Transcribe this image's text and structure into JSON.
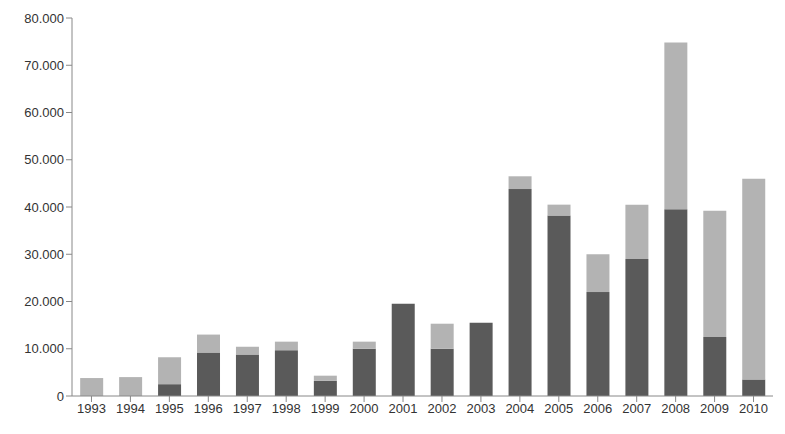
{
  "chart_data": {
    "type": "bar",
    "stacked": true,
    "grid": false,
    "categories": [
      "1993",
      "1994",
      "1995",
      "1996",
      "1997",
      "1998",
      "1999",
      "2000",
      "2001",
      "2002",
      "2003",
      "2004",
      "2005",
      "2006",
      "2007",
      "2008",
      "2009",
      "2010"
    ],
    "series": [
      {
        "color": "#5a5a5a",
        "values": [
          0,
          0,
          2500,
          9200,
          8800,
          9700,
          3200,
          10000,
          19500,
          10000,
          15500,
          43800,
          38200,
          22000,
          29000,
          39500,
          12500,
          3500
        ]
      },
      {
        "color": "#b3b3b3",
        "values": [
          3800,
          4000,
          5700,
          3800,
          1600,
          1800,
          1100,
          1500,
          0,
          5300,
          0,
          2700,
          2300,
          8000,
          11500,
          35300,
          26700,
          42500
        ]
      }
    ],
    "ylim": [
      0,
      80000
    ],
    "yticks": [
      0,
      {
        "value": 10000,
        "label": "10.000"
      },
      {
        "value": 20000,
        "label": "20.000"
      },
      {
        "value": 30000,
        "label": "30.000"
      },
      {
        "value": 40000,
        "label": "40.000"
      },
      {
        "value": 50000,
        "label": "50.000"
      },
      {
        "value": 60000,
        "label": "60.000"
      },
      {
        "value": 70000,
        "label": "70.000"
      },
      {
        "value": 80000,
        "label": "80.000"
      }
    ]
  }
}
